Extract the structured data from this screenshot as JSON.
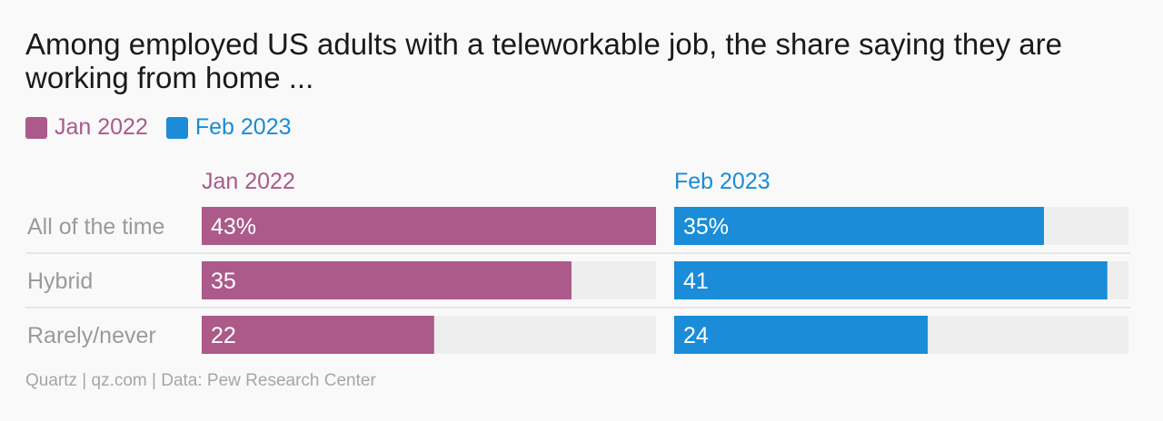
{
  "title": "Among employed US adults with a teleworkable job, the share saying they are working from home ...",
  "legend": [
    {
      "label": "Jan 2022",
      "color": "#ab5a8a"
    },
    {
      "label": "Feb 2023",
      "color": "#1a8cd8"
    }
  ],
  "source": "Quartz | qz.com | Data: Pew Research Center",
  "colors": {
    "track": "#eeeeee",
    "divider": "#e0e0e0",
    "category_text": "#9a9a9a",
    "bar_text": "#ffffff"
  },
  "chart_data": {
    "type": "bar",
    "orientation": "horizontal",
    "layout": "small-multiples",
    "categories": [
      "All of the time",
      "Hybrid",
      "Rarely/never"
    ],
    "series": [
      {
        "name": "Jan 2022",
        "values": [
          43,
          35,
          22
        ],
        "labels": [
          "43%",
          "35",
          "22"
        ],
        "color": "#ab5a8a"
      },
      {
        "name": "Feb 2023",
        "values": [
          35,
          41,
          24
        ],
        "labels": [
          "35%",
          "41",
          "24"
        ],
        "color": "#1a8cd8"
      }
    ],
    "xlim": [
      0,
      43
    ],
    "grid": false
  }
}
